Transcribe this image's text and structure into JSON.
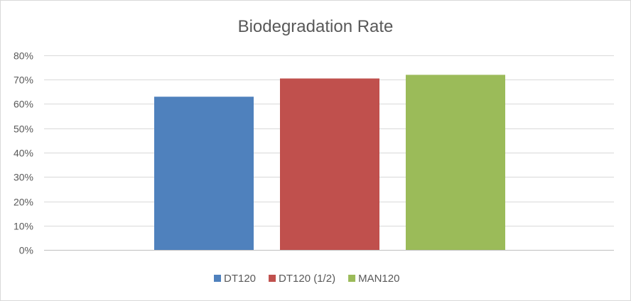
{
  "chart_data": {
    "type": "bar",
    "title": "Biodegradation Rate",
    "xlabel": "",
    "ylabel": "",
    "ylim": [
      0,
      0.8
    ],
    "yticks": [
      "0%",
      "10%",
      "20%",
      "30%",
      "40%",
      "50%",
      "60%",
      "70%",
      "80%"
    ],
    "grid": true,
    "legend_position": "bottom",
    "series": [
      {
        "name": "DT120",
        "value": 0.63,
        "color": "#4f81bd"
      },
      {
        "name": "DT120 (1/2)",
        "value": 0.705,
        "color": "#c0504d"
      },
      {
        "name": "MAN120",
        "value": 0.72,
        "color": "#9bbb59"
      }
    ]
  }
}
